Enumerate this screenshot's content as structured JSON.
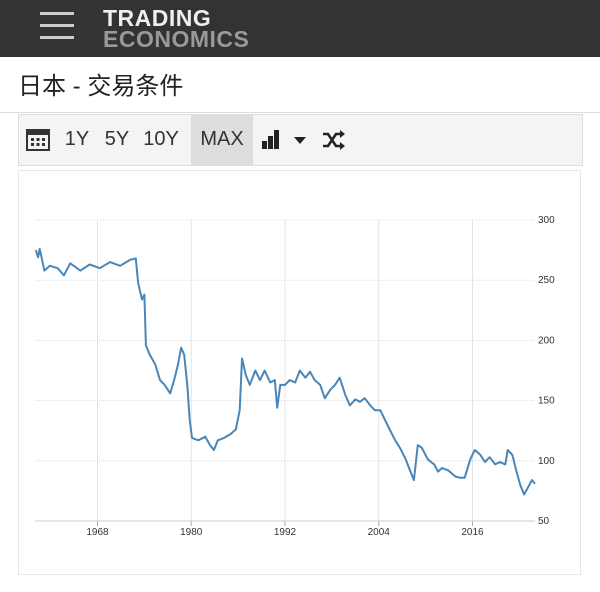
{
  "header": {
    "logo_top": "TRADING",
    "logo_bottom": "ECONOMICS"
  },
  "page_title": "日本 - 交易条件",
  "toolbar": {
    "buttons": [
      "1Y",
      "5Y",
      "10Y",
      "MAX"
    ],
    "active": "MAX"
  },
  "chart_data": {
    "type": "line",
    "x": [
      1960.1,
      1960.4,
      1960.6,
      1961.2,
      1961.9,
      1962.9,
      1963.7,
      1964.5,
      1965.8,
      1967.0,
      1968.3,
      1969.6,
      1970.9,
      1972.2,
      1972.9,
      1973.2,
      1973.4,
      1973.7,
      1974.0,
      1974.2,
      1974.7,
      1975.4,
      1976.0,
      1976.6,
      1977.3,
      1977.8,
      1978.3,
      1978.7,
      1979.1,
      1979.5,
      1979.8,
      1980.1,
      1980.9,
      1981.8,
      1982.4,
      1982.9,
      1983.4,
      1984.2,
      1985.0,
      1985.7,
      1986.2,
      1986.5,
      1987.0,
      1987.5,
      1988.2,
      1988.8,
      1989.4,
      1990.1,
      1990.7,
      1991.0,
      1991.4,
      1992.0,
      1992.6,
      1993.3,
      1993.9,
      1994.6,
      1995.2,
      1995.8,
      1996.5,
      1997.1,
      1997.8,
      1998.4,
      1999.0,
      1999.7,
      2000.3,
      2001.0,
      2001.6,
      2002.2,
      2002.9,
      2003.5,
      2004.2,
      2004.8,
      2005.4,
      2006.1,
      2006.7,
      2007.4,
      2008.0,
      2008.5,
      2009.0,
      2009.5,
      2010.3,
      2011.1,
      2011.6,
      2012.1,
      2012.9,
      2013.8,
      2014.4,
      2015.0,
      2015.7,
      2016.3,
      2017.0,
      2017.6,
      2018.2,
      2018.9,
      2019.5,
      2020.2,
      2020.5,
      2021.1,
      2021.6,
      2022.1,
      2022.6,
      2023.1,
      2023.6,
      2024.0
    ],
    "series": [
      {
        "color": "#4a86b8",
        "values": [
          275,
          269,
          276,
          258,
          262,
          260,
          254,
          264,
          258,
          263,
          260,
          265,
          262,
          267,
          268,
          248,
          242,
          234,
          238,
          196,
          188,
          180,
          167,
          163,
          156,
          167,
          180,
          194,
          188,
          163,
          134,
          119,
          117,
          120,
          113,
          109,
          117,
          119,
          122,
          126,
          142,
          185,
          171,
          163,
          175,
          167,
          175,
          165,
          167,
          144,
          163,
          163,
          167,
          165,
          175,
          169,
          174,
          167,
          163,
          152,
          159,
          163,
          169,
          155,
          146,
          151,
          149,
          152,
          146,
          142,
          142,
          134,
          126,
          117,
          111,
          102,
          92,
          84,
          113,
          111,
          101,
          97,
          91,
          94,
          92,
          87,
          86,
          86,
          101,
          109,
          105,
          99,
          103,
          97,
          99,
          97,
          109,
          105,
          92,
          80,
          72,
          78,
          84,
          81
        ]
      }
    ],
    "xlim": [
      1960,
      2024
    ],
    "xticks": [
      1968,
      1980,
      1992,
      2004,
      2016
    ],
    "ylim": [
      50,
      300
    ],
    "yticks": [
      50,
      100,
      150,
      200,
      250,
      300
    ],
    "grid": true
  }
}
